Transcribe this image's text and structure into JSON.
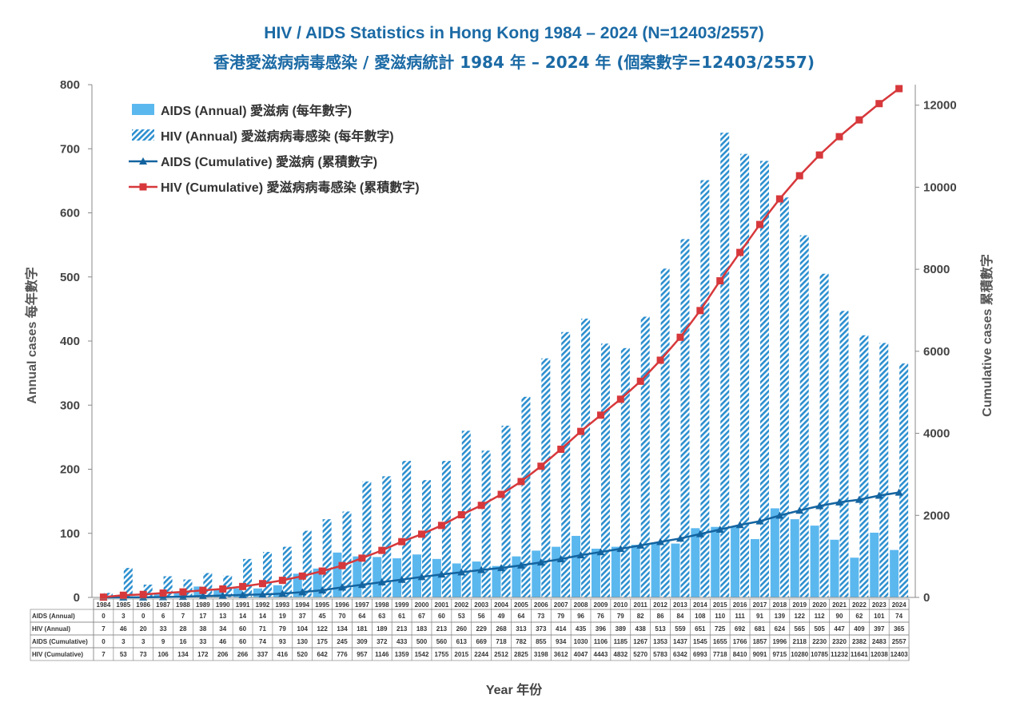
{
  "title_en": "HIV / AIDS Statistics in Hong Kong 1984 – 2024 (N=12403/2557)",
  "title_zh": "香港愛滋病病毒感染 / 愛滋病統計 1984 年 – 2024 年 (個案數字=12403/2557)",
  "colors": {
    "title": "#1b6aa5",
    "aids_bar": "#5bb8ef",
    "hiv_bar": "#2c8fcf",
    "aids_line": "#1464a0",
    "hiv_line": "#d7383b"
  },
  "chart_data": {
    "type": "bar",
    "title": "HIV / AIDS Statistics in Hong Kong 1984 – 2024 (N=12403/2557)",
    "xlabel": "Year 年份",
    "ylabel": "Annual cases 每年數字",
    "y2label": "Cumulative cases 累積數字",
    "ylim": [
      0,
      800
    ],
    "y2lim": [
      0,
      12500
    ],
    "yticks": [
      0,
      100,
      200,
      300,
      400,
      500,
      600,
      700,
      800
    ],
    "y2ticks": [
      0,
      2000,
      4000,
      6000,
      8000,
      10000,
      12000
    ],
    "legend_position": "top-left",
    "grid": false,
    "categories": [
      "1984",
      "1985",
      "1986",
      "1987",
      "1988",
      "1989",
      "1990",
      "1991",
      "1992",
      "1993",
      "1994",
      "1995",
      "1996",
      "1997",
      "1998",
      "1999",
      "2000",
      "2001",
      "2002",
      "2003",
      "2004",
      "2005",
      "2006",
      "2007",
      "2008",
      "2009",
      "2010",
      "2011",
      "2012",
      "2013",
      "2014",
      "2015",
      "2016",
      "2017",
      "2018",
      "2019",
      "2020",
      "2021",
      "2022",
      "2023",
      "2024"
    ],
    "series": [
      {
        "name": "AIDS (Annual)",
        "legend": "AIDS (Annual)  愛滋病 (每年數字)",
        "table_label": "AIDS (Annual)",
        "kind": "bar",
        "axis": "left",
        "values": [
          0,
          3,
          0,
          6,
          7,
          17,
          13,
          14,
          14,
          19,
          37,
          45,
          70,
          64,
          63,
          61,
          67,
          60,
          53,
          56,
          49,
          64,
          73,
          79,
          96,
          76,
          79,
          82,
          86,
          84,
          108,
          110,
          111,
          91,
          139,
          122,
          112,
          90,
          62,
          101,
          74
        ]
      },
      {
        "name": "HIV (Annual)",
        "legend": "HIV (Annual)  愛滋病病毒感染 (每年數字)",
        "table_label": "HIV (Annual)",
        "kind": "bar",
        "axis": "left",
        "values": [
          7,
          46,
          20,
          33,
          28,
          38,
          34,
          60,
          71,
          79,
          104,
          122,
          134,
          181,
          189,
          213,
          183,
          213,
          260,
          229,
          268,
          313,
          373,
          414,
          435,
          396,
          389,
          438,
          513,
          559,
          651,
          725,
          692,
          681,
          624,
          565,
          505,
          447,
          409,
          397,
          365
        ]
      },
      {
        "name": "AIDS (Cumulative)",
        "legend": "AIDS (Cumulative)  愛滋病 (累積數字)",
        "table_label": "AIDS (Cumulative)",
        "kind": "line",
        "axis": "right",
        "values": [
          0,
          3,
          3,
          9,
          16,
          33,
          46,
          60,
          74,
          93,
          130,
          175,
          245,
          309,
          372,
          433,
          500,
          560,
          613,
          669,
          718,
          782,
          855,
          934,
          1030,
          1106,
          1185,
          1267,
          1353,
          1437,
          1545,
          1655,
          1766,
          1857,
          1996,
          2118,
          2230,
          2320,
          2382,
          2483,
          2557
        ]
      },
      {
        "name": "HIV (Cumulative)",
        "legend": "HIV (Cumulative)  愛滋病病毒感染 (累積數字)",
        "table_label": "HIV (Cumulative)",
        "kind": "line",
        "axis": "right",
        "values": [
          7,
          53,
          73,
          106,
          134,
          172,
          206,
          266,
          337,
          416,
          520,
          642,
          776,
          957,
          1146,
          1359,
          1542,
          1755,
          2015,
          2244,
          2512,
          2825,
          3198,
          3612,
          4047,
          4443,
          4832,
          5270,
          5783,
          6342,
          6993,
          7718,
          8410,
          9091,
          9715,
          10280,
          10785,
          11232,
          11641,
          12038,
          12403
        ]
      }
    ]
  }
}
